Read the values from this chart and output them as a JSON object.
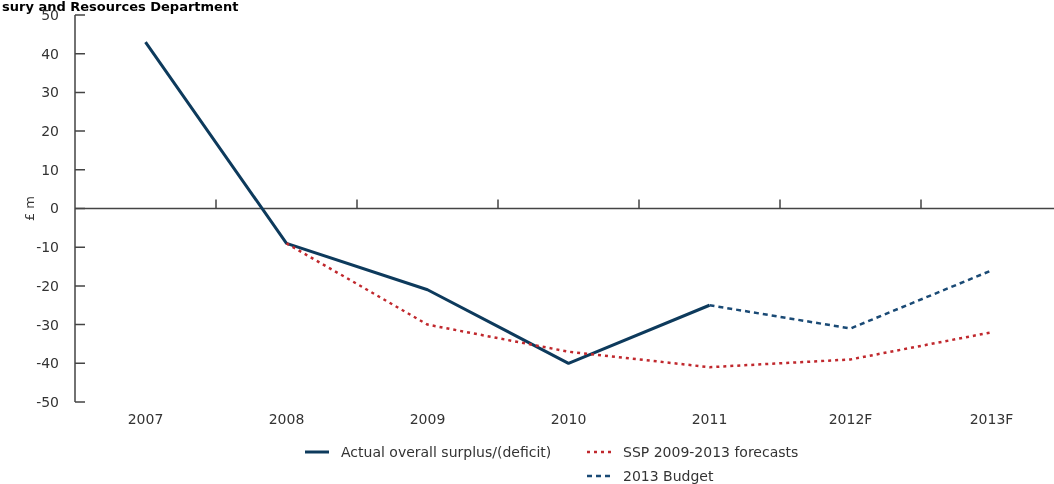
{
  "chart_data": {
    "type": "line",
    "title": "sury and Resources Department",
    "ylabel": "£ m",
    "categories": [
      "2007",
      "2008",
      "2009",
      "2010",
      "2011",
      "2012F",
      "2013F"
    ],
    "series": [
      {
        "name": "Actual overall surplus/(deficit)",
        "color": "#0d3a5c",
        "line_style": "solid",
        "values": [
          43,
          -9,
          -21,
          -40,
          -25,
          null,
          null
        ]
      },
      {
        "name": "SSP 2009-2013 forecasts",
        "color": "#c0282d",
        "line_style": "dotted",
        "values": [
          null,
          -9,
          -30,
          -37,
          -41,
          -39,
          -32
        ]
      },
      {
        "name": "2013 Budget",
        "color": "#1a4a75",
        "line_style": "dashed",
        "values": [
          null,
          null,
          null,
          null,
          -25,
          -31,
          -16
        ]
      }
    ],
    "ylim": [
      -50,
      50
    ],
    "yticks": [
      -50,
      -40,
      -30,
      -20,
      -10,
      0,
      10,
      20,
      30,
      40,
      50
    ],
    "grid": false,
    "ref_lines": [
      {
        "axis": "y",
        "value": 0,
        "color": "#444444"
      }
    ],
    "legend": "bottom",
    "marker": "none"
  }
}
